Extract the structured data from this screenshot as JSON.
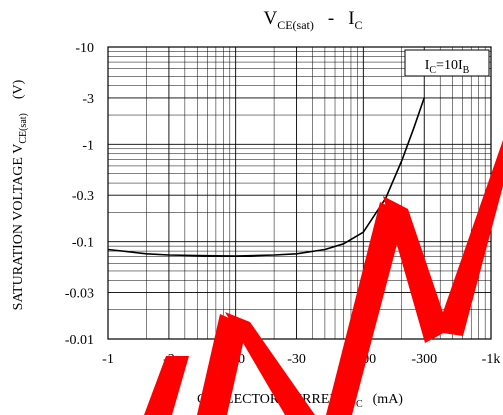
{
  "chart_data": {
    "type": "line",
    "title": {
      "main": "V",
      "main_sub": "CE(sat)",
      "dash": "-",
      "var": "I",
      "var_sub": "C"
    },
    "ylabel": {
      "pre": "SATURATION VOLTAGE V",
      "sub": "CE(sat)",
      "unit": "(V)"
    },
    "xlabel": {
      "pre": "COLLECTOR CURRENT I",
      "sub": "C",
      "unit": "(mA)"
    },
    "x_scale": "log",
    "y_scale": "log",
    "xlim": [
      -1,
      -1000
    ],
    "ylim": [
      -0.01,
      -10
    ],
    "grid": true,
    "x_ticks": [
      {
        "value": -1,
        "label": "-1"
      },
      {
        "value": -3,
        "label": "-3"
      },
      {
        "value": -10,
        "label": "-10"
      },
      {
        "value": -30,
        "label": "-30"
      },
      {
        "value": -100,
        "label": "-100"
      },
      {
        "value": -300,
        "label": "-300"
      },
      {
        "value": -1000,
        "label": "-1k"
      }
    ],
    "y_ticks": [
      {
        "value": -10,
        "label": "-10"
      },
      {
        "value": -3,
        "label": "-3"
      },
      {
        "value": -1,
        "label": "-1"
      },
      {
        "value": -0.3,
        "label": "-0.3"
      },
      {
        "value": -0.1,
        "label": "-0.1"
      },
      {
        "value": -0.03,
        "label": "-0.03"
      },
      {
        "value": -0.01,
        "label": "-0.01"
      }
    ],
    "legend": {
      "text": "I",
      "sub1": "C",
      "mid": "=10I",
      "sub2": "B",
      "placement": "top-right"
    },
    "series": [
      {
        "x": [
          -1,
          -2,
          -3,
          -5,
          -10,
          -20,
          -30,
          -50,
          -70,
          -100,
          -150,
          -200,
          -250,
          -300
        ],
        "y": [
          -0.083,
          -0.075,
          -0.073,
          -0.072,
          -0.071,
          -0.073,
          -0.075,
          -0.083,
          -0.095,
          -0.125,
          -0.28,
          -0.68,
          -1.5,
          -3.0
        ]
      }
    ],
    "colors": {
      "line": "#000000",
      "grid": "#000000",
      "watermark": "#ff0000"
    }
  }
}
